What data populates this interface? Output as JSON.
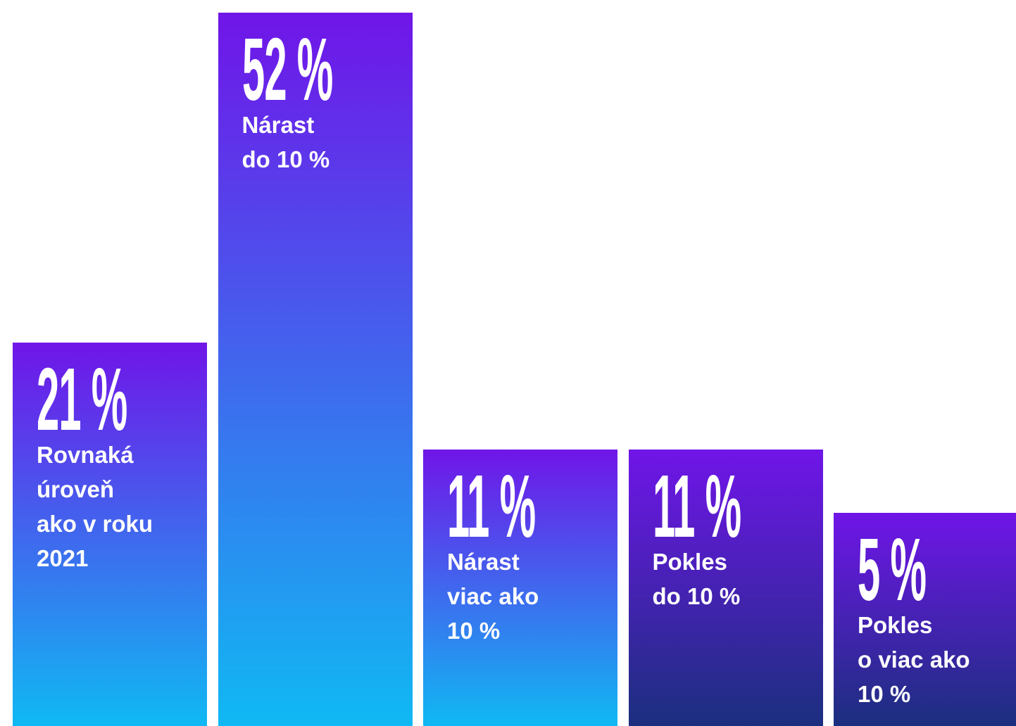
{
  "chart_data": {
    "type": "bar",
    "categories": [
      "Rovnaká\núroveň\nako v roku\n2021",
      "Nárast\ndo 10 %",
      "Nárast\nviac ako\n10 %",
      "Pokles\ndo 10 %",
      "Pokles\no viac ako\n10 %"
    ],
    "values": [
      21,
      52,
      11,
      11,
      5
    ],
    "value_labels": [
      "21 %",
      "52 %",
      "11 %",
      "11 %",
      "5 %"
    ],
    "gradient_top": "#7015e8",
    "colors": [
      "#10b9f3",
      "#10b9f3",
      "#10b9f3",
      "#1b2f7e",
      "#1b2f7e"
    ],
    "ylim": [
      -15,
      52
    ]
  }
}
